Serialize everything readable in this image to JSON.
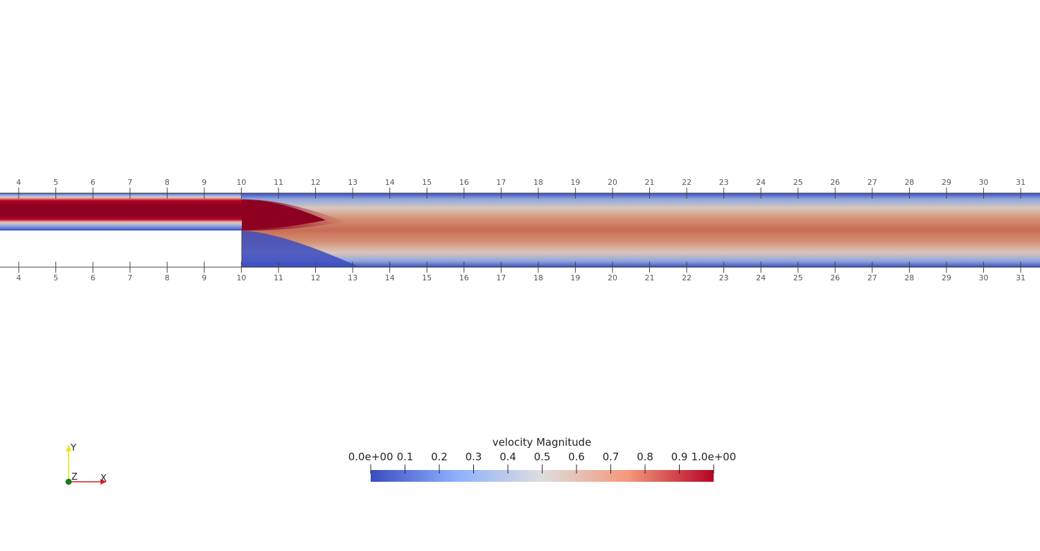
{
  "chart_data": {
    "type": "heatmap",
    "scalar": "velocity Magnitude",
    "x_ticks": [
      "4",
      "5",
      "6",
      "7",
      "8",
      "9",
      "10",
      "11",
      "12",
      "13",
      "14",
      "15",
      "16",
      "17",
      "18",
      "19",
      "20",
      "21",
      "22",
      "23",
      "24",
      "25",
      "26",
      "27",
      "28",
      "29",
      "30",
      "31"
    ],
    "x_tick_values": [
      4,
      5,
      6,
      7,
      8,
      9,
      10,
      11,
      12,
      13,
      14,
      15,
      16,
      17,
      18,
      19,
      20,
      21,
      22,
      23,
      24,
      25,
      26,
      27,
      28,
      29,
      30,
      31
    ],
    "step_x": 10,
    "inlet_core_value": 1.0,
    "downstream_centerline_value": 0.8,
    "colorbar": {
      "title": "velocity Magnitude",
      "range": [
        0,
        1
      ],
      "tick_values": [
        0,
        0.1,
        0.2,
        0.3,
        0.4,
        0.5,
        0.6,
        0.7,
        0.8,
        0.9,
        1.0
      ],
      "tick_labels": [
        "0.0e+00",
        "0.1",
        "0.2",
        "0.3",
        "0.4",
        "0.5",
        "0.6",
        "0.7",
        "0.8",
        "0.9",
        "1.0e+00"
      ],
      "colors": [
        "#3b4cc0",
        "#dddddd",
        "#b40426"
      ]
    },
    "orientation_axes": {
      "x": "X",
      "y": "Y",
      "z": "Z"
    }
  },
  "colors": {
    "wall": "#444444",
    "axis_x": "#e41a1c",
    "axis_y": "#e6e600",
    "axis_z": "#1a7a1a"
  }
}
